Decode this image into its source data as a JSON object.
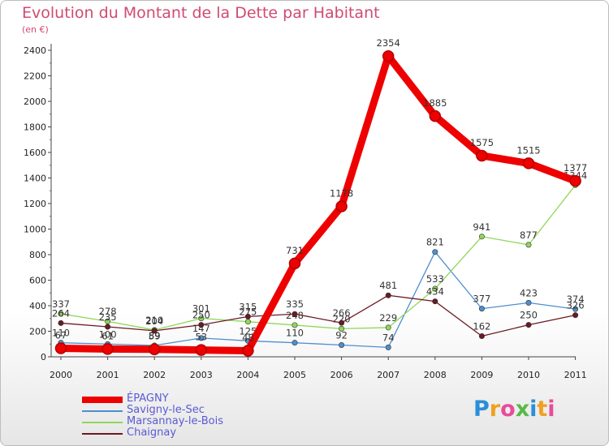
{
  "chart_data": {
    "type": "line",
    "title": "Evolution du Montant de la Dette par Habitant",
    "subtitle": "(en €)",
    "xlabel": "",
    "ylabel": "",
    "categories": [
      "2000",
      "2001",
      "2002",
      "2003",
      "2004",
      "2005",
      "2006",
      "2007",
      "2008",
      "2009",
      "2010",
      "2011"
    ],
    "ylim": [
      0,
      2400
    ],
    "yticks": [
      0,
      200,
      400,
      600,
      800,
      1000,
      1200,
      1400,
      1600,
      1800,
      2000,
      2200,
      2400
    ],
    "grid": false,
    "legend_position": "bottom-left",
    "series": [
      {
        "name": "Savigny-le-Sec",
        "color": "#4e8fd0",
        "values": [
          110,
          100,
          89,
          147,
          125,
          110,
          92,
          74,
          821,
          377,
          423,
          374
        ]
      },
      {
        "name": "Marsannay-le-Bois",
        "color": "#8fd65a",
        "values": [
          337,
          278,
          210,
          301,
          275,
          248,
          220,
          229,
          533,
          941,
          877,
          1344
        ]
      },
      {
        "name": "Chaignay",
        "color": "#6b1a22",
        "values": [
          264,
          235,
          204,
          250,
          315,
          335,
          266,
          481,
          434,
          162,
          250,
          326
        ]
      },
      {
        "name": "ÉPAGNY",
        "color": "#ee0000",
        "values": [
          67,
          61,
          59,
          53,
          48,
          731,
          1178,
          2354,
          1885,
          1575,
          1515,
          1377
        ]
      }
    ]
  },
  "legend": {
    "items": [
      "ÉPAGNY",
      "Savigny-le-Sec",
      "Marsannay-le-Bois",
      "Chaignay"
    ]
  },
  "logo": {
    "letters": [
      "P",
      "r",
      "o",
      "x",
      "i",
      "t",
      "i"
    ],
    "colors": [
      "#2a8fd8",
      "#f0a020",
      "#e84b9a",
      "#57b947",
      "#2a8fd8",
      "#f0a020",
      "#e84b9a"
    ]
  }
}
